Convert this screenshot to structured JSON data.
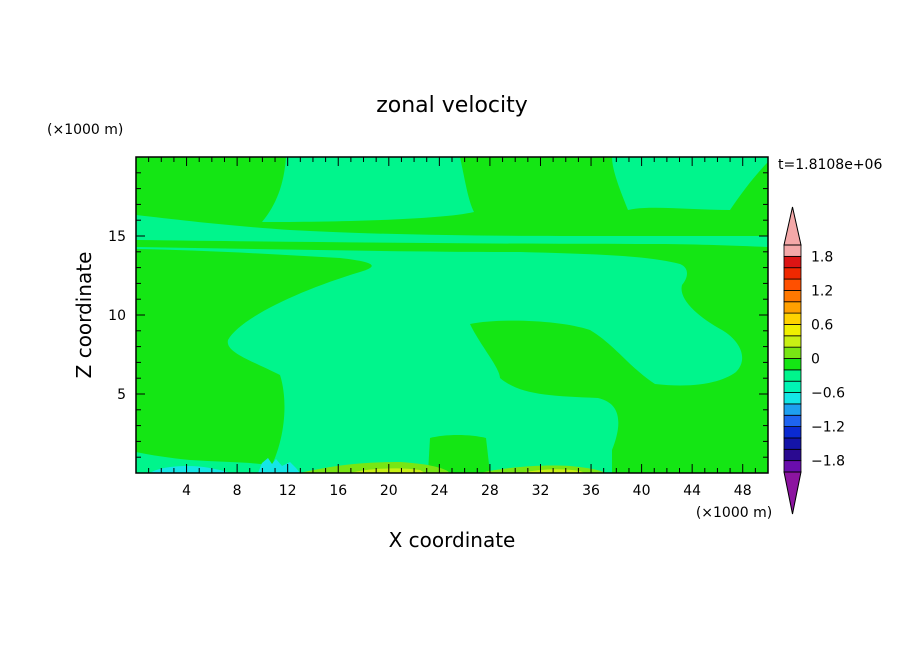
{
  "chart_data": {
    "type": "heatmap",
    "title": "zonal velocity",
    "xlabel": "X coordinate",
    "ylabel": "Z coordinate",
    "x_unit": "(×1000 m)",
    "y_unit": "(×1000 m)",
    "time_label": "t=1.8108e+06",
    "xlim": [
      0,
      50
    ],
    "ylim": [
      0,
      20
    ],
    "x_ticks": [
      4,
      8,
      12,
      16,
      20,
      24,
      28,
      32,
      36,
      40,
      44,
      48
    ],
    "y_ticks": [
      5,
      10,
      15
    ],
    "colorbar": {
      "min": -2.0,
      "max": 2.0,
      "step": 0.2,
      "tick_values": [
        1.8,
        1.2,
        0.6,
        0,
        -0.6,
        -1.2,
        -1.8
      ],
      "tick_labels": [
        "1.8",
        "1.2",
        "0.6",
        "0",
        "−0.6",
        "−1.2",
        "−1.8"
      ],
      "colors": [
        "#6a0dad",
        "#2a0a90",
        "#1414a8",
        "#0a2ad2",
        "#1e64f0",
        "#1ea0f0",
        "#14e6e6",
        "#00f5b4",
        "#00f58c",
        "#14e614",
        "#78e614",
        "#c8f014",
        "#f0f000",
        "#ffd200",
        "#ffa000",
        "#ff7800",
        "#ff5000",
        "#f02800",
        "#dc1414",
        "#f4a8a8"
      ],
      "under_color": "#8c14a0",
      "over_color": "#f4a8a8"
    },
    "level_colors": {
      "positive_small": "#14e614",
      "negative_small": "#00f58c",
      "negative_medium": "#14e6e6",
      "positive_medium": "#78e614",
      "positive_large": "#c8f014"
    }
  }
}
